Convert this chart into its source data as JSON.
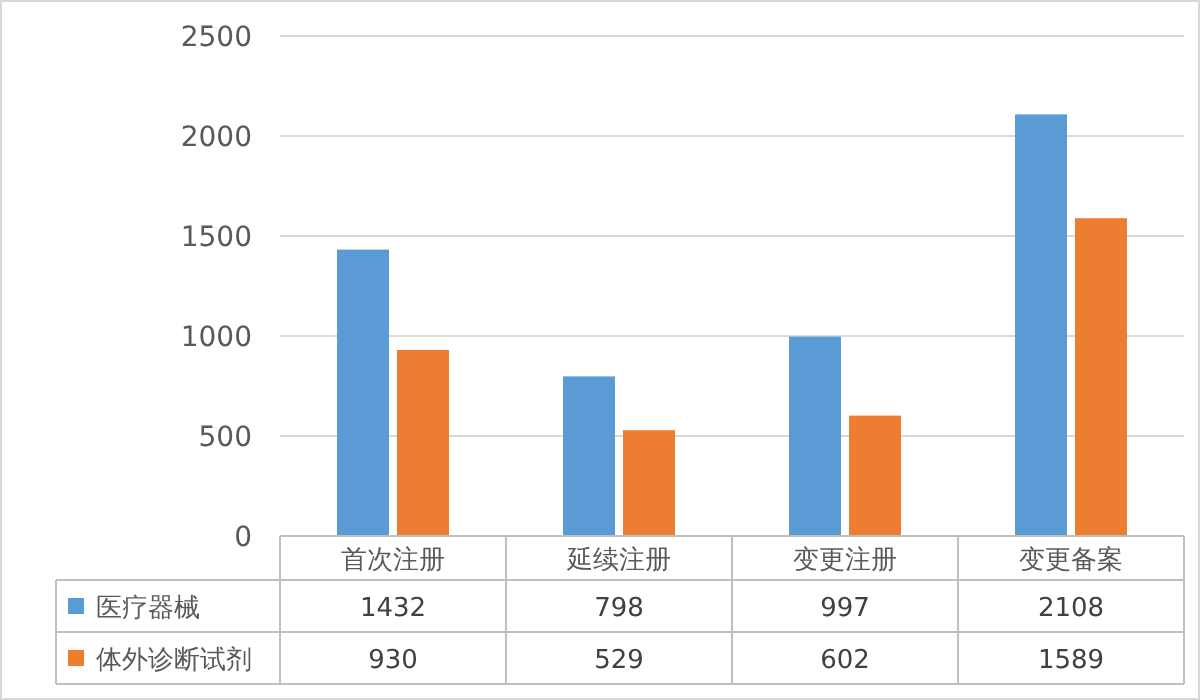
{
  "chart_data": {
    "type": "bar",
    "categories": [
      "首次注册",
      "延续注册",
      "变更注册",
      "变更备案"
    ],
    "series": [
      {
        "name": "医疗器械",
        "color": "#5b9bd5",
        "values": [
          1432,
          798,
          997,
          2108
        ]
      },
      {
        "name": "体外诊断试剂",
        "color": "#ed7d31",
        "values": [
          930,
          529,
          602,
          1589
        ]
      }
    ],
    "ylim": [
      0,
      2500
    ],
    "yticks": [
      0,
      500,
      1000,
      1500,
      2000,
      2500
    ],
    "grid": "y",
    "legend": "bottom",
    "data_labels": true
  }
}
